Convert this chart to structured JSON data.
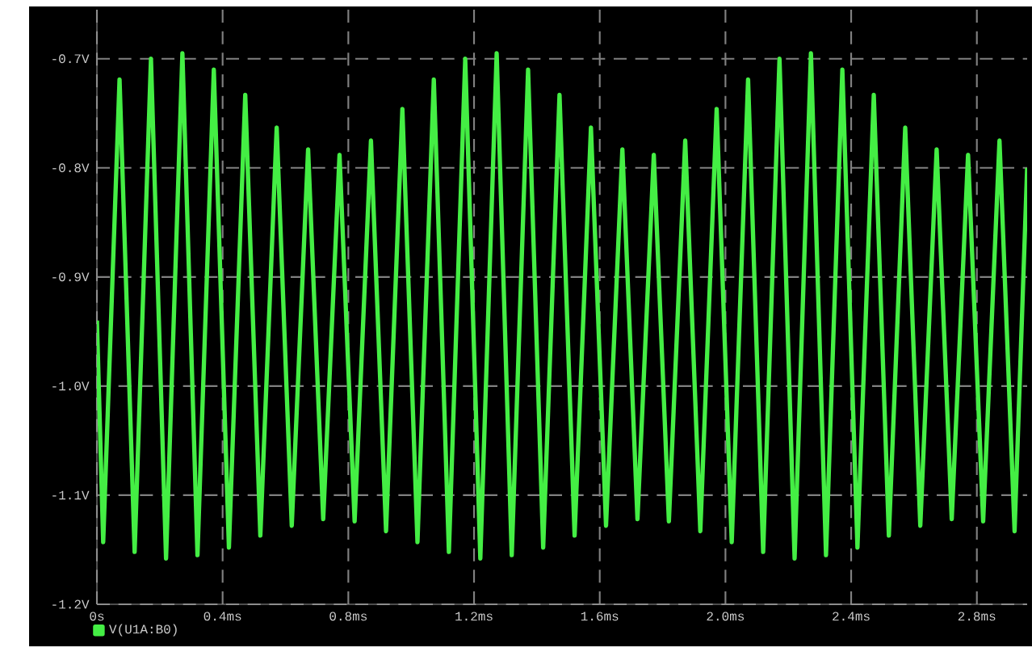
{
  "chart_data": {
    "type": "line",
    "x": [
      0,
      0.02,
      0.072,
      0.12,
      0.172,
      0.22,
      0.272,
      0.32,
      0.372,
      0.42,
      0.472,
      0.52,
      0.572,
      0.62,
      0.672,
      0.72,
      0.772,
      0.82,
      0.872,
      0.92,
      0.972,
      1.02,
      1.072,
      1.12,
      1.172,
      1.22,
      1.272,
      1.32,
      1.372,
      1.42,
      1.472,
      1.52,
      1.572,
      1.62,
      1.672,
      1.72,
      1.772,
      1.82,
      1.872,
      1.92,
      1.972,
      2.02,
      2.072,
      2.12,
      2.172,
      2.22,
      2.272,
      2.32,
      2.372,
      2.42,
      2.472,
      2.52,
      2.572,
      2.62,
      2.672,
      2.72,
      2.772,
      2.82,
      2.872,
      2.92,
      2.96
    ],
    "series": [
      {
        "name": "V(U1A:B0)",
        "color": "#44ee44",
        "values": [
          -0.94,
          -1.143,
          -0.719,
          -1.152,
          -0.7,
          -1.158,
          -0.695,
          -1.155,
          -0.71,
          -1.148,
          -0.733,
          -1.137,
          -0.763,
          -1.128,
          -0.783,
          -1.122,
          -0.788,
          -1.124,
          -0.775,
          -1.133,
          -0.746,
          -1.143,
          -0.719,
          -1.152,
          -0.7,
          -1.158,
          -0.695,
          -1.155,
          -0.71,
          -1.148,
          -0.733,
          -1.137,
          -0.763,
          -1.128,
          -0.783,
          -1.122,
          -0.788,
          -1.124,
          -0.775,
          -1.133,
          -0.746,
          -1.143,
          -0.719,
          -1.152,
          -0.7,
          -1.158,
          -0.695,
          -1.155,
          -0.71,
          -1.148,
          -0.733,
          -1.137,
          -0.763,
          -1.128,
          -0.783,
          -1.122,
          -0.788,
          -1.124,
          -0.775,
          -1.133,
          -0.8
        ]
      }
    ],
    "xlim": [
      0,
      2.96
    ],
    "ylim": [
      -1.2,
      -0.655
    ],
    "xticks": [
      {
        "value": 0,
        "label": "0s"
      },
      {
        "value": 0.4,
        "label": "0.4ms"
      },
      {
        "value": 0.8,
        "label": "0.8ms"
      },
      {
        "value": 1.2,
        "label": "1.2ms"
      },
      {
        "value": 1.6,
        "label": "1.6ms"
      },
      {
        "value": 2.0,
        "label": "2.0ms"
      },
      {
        "value": 2.4,
        "label": "2.4ms"
      },
      {
        "value": 2.8,
        "label": "2.8ms"
      }
    ],
    "yticks": [
      {
        "value": -1.2,
        "label": "-1.2V"
      },
      {
        "value": -1.1,
        "label": "-1.1V"
      },
      {
        "value": -1.0,
        "label": "-1.0V"
      },
      {
        "value": -0.9,
        "label": "-0.9V"
      },
      {
        "value": -0.8,
        "label": "-0.8V"
      },
      {
        "value": -0.7,
        "label": "-0.7V"
      }
    ],
    "grid": true,
    "legend": "bottom left",
    "line_style": "solid"
  }
}
